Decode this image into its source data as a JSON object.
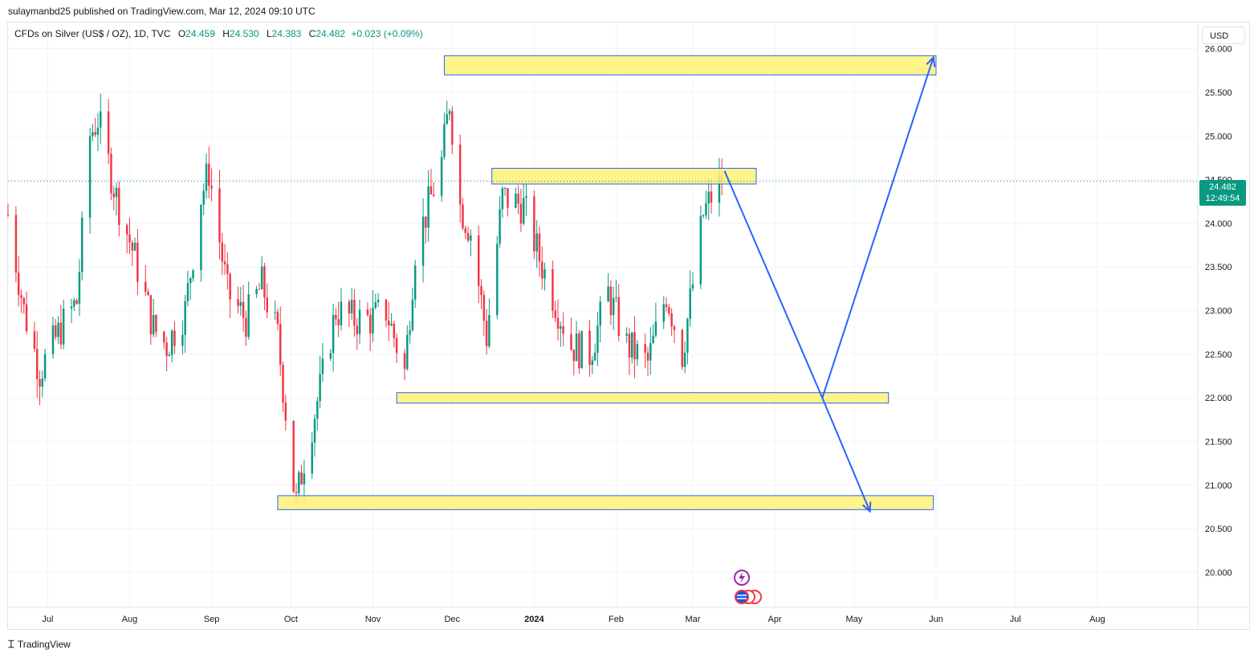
{
  "header": {
    "publish_line": "sulaymanbd25 published on TradingView.com, Mar 12, 2024 09:10 UTC"
  },
  "legend": {
    "symbol": "CFDs on Silver (US$ / OZ), 1D, TVC",
    "open_label": "O",
    "open": "24.459",
    "high_label": "H",
    "high": "24.530",
    "low_label": "L",
    "low": "24.383",
    "close_label": "C",
    "close": "24.482",
    "change": "+0.023 (+0.09%)"
  },
  "currency": "USD",
  "price_tag": {
    "price": "24.482",
    "countdown": "12:49:54"
  },
  "footer": {
    "brand": "TradingView"
  },
  "colors": {
    "up": "#089981",
    "down": "#f23645",
    "zone_fill": "#fff176",
    "zone_border": "#2962ff",
    "arrow": "#2962ff",
    "grid": "#f0f3fa"
  },
  "icons": [
    "tradingview-logo-icon",
    "dividend-event-icon",
    "earnings-flag-icon"
  ],
  "chart_data": {
    "type": "candlestick",
    "title": "",
    "y_ticks": [
      "26.000",
      "25.500",
      "25.000",
      "24.500",
      "24.000",
      "23.500",
      "23.000",
      "22.500",
      "22.000",
      "21.500",
      "21.000",
      "20.500",
      "20.000"
    ],
    "ylim": [
      19.6,
      26.3
    ],
    "x_ticks": [
      "Jul",
      "Aug",
      "Sep",
      "Oct",
      "Nov",
      "Dec",
      "2024",
      "Feb",
      "Mar",
      "Apr",
      "May",
      "Jun",
      "Jul",
      "Aug"
    ],
    "x_tick_dates": [
      "2023-07-01",
      "2023-08-01",
      "2023-09-01",
      "2023-10-01",
      "2023-11-01",
      "2023-12-01",
      "2024-01-01",
      "2024-02-01",
      "2024-03-01",
      "2024-04-01",
      "2024-05-01",
      "2024-06-01",
      "2024-07-01",
      "2024-08-01"
    ],
    "xlim": [
      "2023-06-16",
      "2024-09-08"
    ],
    "current_price": 24.482,
    "grid": true,
    "close_path": [
      {
        "date": "2023-06-16",
        "close": 24.1
      },
      {
        "date": "2023-06-22",
        "close": 23.0
      },
      {
        "date": "2023-06-28",
        "close": 22.3
      },
      {
        "date": "2023-07-06",
        "close": 22.8
      },
      {
        "date": "2023-07-12",
        "close": 23.1
      },
      {
        "date": "2023-07-17",
        "close": 25.0
      },
      {
        "date": "2023-07-20",
        "close": 25.2
      },
      {
        "date": "2023-07-27",
        "close": 24.3
      },
      {
        "date": "2023-08-03",
        "close": 23.6
      },
      {
        "date": "2023-08-10",
        "close": 22.8
      },
      {
        "date": "2023-08-15",
        "close": 22.6
      },
      {
        "date": "2023-08-22",
        "close": 23.0
      },
      {
        "date": "2023-08-28",
        "close": 24.3
      },
      {
        "date": "2023-08-31",
        "close": 24.6
      },
      {
        "date": "2023-09-07",
        "close": 23.2
      },
      {
        "date": "2023-09-14",
        "close": 22.9
      },
      {
        "date": "2023-09-20",
        "close": 23.3
      },
      {
        "date": "2023-09-26",
        "close": 22.7
      },
      {
        "date": "2023-10-02",
        "close": 21.0
      },
      {
        "date": "2023-10-03",
        "close": 20.8
      },
      {
        "date": "2023-10-06",
        "close": 21.3
      },
      {
        "date": "2023-10-12",
        "close": 22.1
      },
      {
        "date": "2023-10-18",
        "close": 23.0
      },
      {
        "date": "2023-10-25",
        "close": 22.9
      },
      {
        "date": "2023-10-31",
        "close": 22.9
      },
      {
        "date": "2023-11-06",
        "close": 23.0
      },
      {
        "date": "2023-11-13",
        "close": 22.3
      },
      {
        "date": "2023-11-17",
        "close": 23.7
      },
      {
        "date": "2023-11-27",
        "close": 24.7
      },
      {
        "date": "2023-11-30",
        "close": 25.4
      },
      {
        "date": "2023-12-04",
        "close": 24.2
      },
      {
        "date": "2023-12-08",
        "close": 23.9
      },
      {
        "date": "2023-12-14",
        "close": 22.7
      },
      {
        "date": "2023-12-20",
        "close": 24.3
      },
      {
        "date": "2023-12-28",
        "close": 24.2
      },
      {
        "date": "2024-01-03",
        "close": 23.6
      },
      {
        "date": "2024-01-09",
        "close": 23.1
      },
      {
        "date": "2024-01-15",
        "close": 22.6
      },
      {
        "date": "2024-01-22",
        "close": 22.5
      },
      {
        "date": "2024-01-29",
        "close": 23.2
      },
      {
        "date": "2024-02-05",
        "close": 22.6
      },
      {
        "date": "2024-02-13",
        "close": 22.4
      },
      {
        "date": "2024-02-20",
        "close": 23.2
      },
      {
        "date": "2024-02-26",
        "close": 22.5
      },
      {
        "date": "2024-03-01",
        "close": 23.3
      },
      {
        "date": "2024-03-05",
        "close": 24.1
      },
      {
        "date": "2024-03-08",
        "close": 24.3
      },
      {
        "date": "2024-03-12",
        "close": 24.48
      }
    ],
    "zones": [
      {
        "start": "2023-11-28",
        "end": "2024-06-01",
        "low": 25.7,
        "high": 25.92
      },
      {
        "start": "2023-12-16",
        "end": "2024-03-25",
        "low": 24.45,
        "high": 24.63
      },
      {
        "start": "2023-11-10",
        "end": "2024-05-14",
        "low": 21.94,
        "high": 22.06
      },
      {
        "start": "2023-09-26",
        "end": "2024-05-31",
        "low": 20.72,
        "high": 20.88
      }
    ],
    "arrows": [
      {
        "points": [
          [
            "2024-03-13",
            24.6
          ],
          [
            "2024-04-19",
            22.0
          ],
          [
            "2024-05-07",
            20.7
          ]
        ]
      },
      {
        "points": [
          [
            "2024-04-19",
            22.0
          ],
          [
            "2024-05-31",
            25.9
          ]
        ]
      }
    ]
  }
}
